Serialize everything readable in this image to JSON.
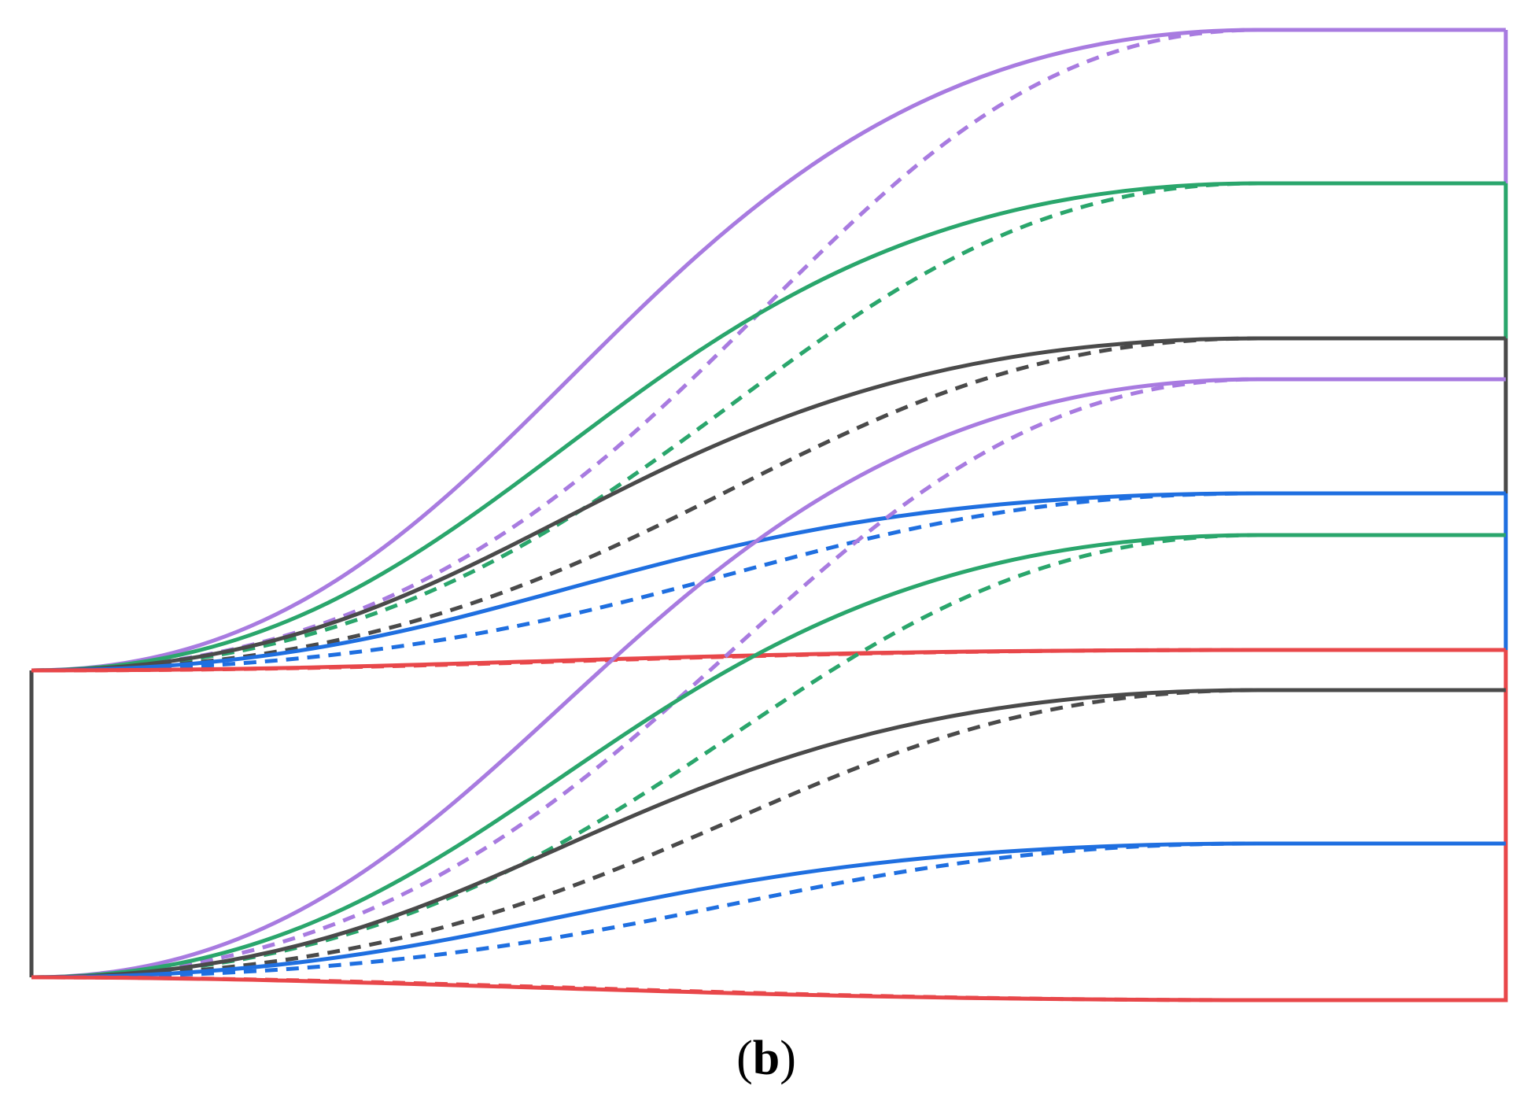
{
  "figure": {
    "caption_open": "(",
    "caption_letter": "b",
    "caption_close": ")"
  },
  "colors": {
    "black": "#4a4a4a",
    "red": "#e8474a",
    "blue": "#1f6fe0",
    "green": "#2aa66c",
    "purple": "#a87be0"
  },
  "frames": [
    {
      "name": "left-frame",
      "color": "black",
      "dash": false
    },
    {
      "name": "red-frame",
      "color": "red",
      "dash": false
    },
    {
      "name": "blue-frame-segment",
      "color": "blue",
      "dash": false
    },
    {
      "name": "black-frame-segment",
      "color": "black",
      "dash": false
    },
    {
      "name": "green-frame-segment",
      "color": "green",
      "dash": false
    },
    {
      "name": "purple-frame-segment",
      "color": "purple",
      "dash": false
    }
  ],
  "curves": [
    {
      "name": "top-purple-solid",
      "color": "purple",
      "dash": false
    },
    {
      "name": "top-purple-dashed",
      "color": "purple",
      "dash": true
    },
    {
      "name": "top-green-solid",
      "color": "green",
      "dash": false
    },
    {
      "name": "top-green-dashed",
      "color": "green",
      "dash": true
    },
    {
      "name": "top-black-solid",
      "color": "black",
      "dash": false
    },
    {
      "name": "top-black-dashed",
      "color": "black",
      "dash": true
    },
    {
      "name": "top-blue-solid",
      "color": "blue",
      "dash": false
    },
    {
      "name": "top-blue-dashed",
      "color": "blue",
      "dash": true
    },
    {
      "name": "top-red-solid",
      "color": "red",
      "dash": false
    },
    {
      "name": "top-red-dashed",
      "color": "red",
      "dash": true
    },
    {
      "name": "bottom-purple-solid",
      "color": "purple",
      "dash": false
    },
    {
      "name": "bottom-purple-dashed",
      "color": "purple",
      "dash": true
    },
    {
      "name": "bottom-green-solid",
      "color": "green",
      "dash": false
    },
    {
      "name": "bottom-green-dashed",
      "color": "green",
      "dash": true
    },
    {
      "name": "bottom-black-solid",
      "color": "black",
      "dash": false
    },
    {
      "name": "bottom-black-dashed",
      "color": "black",
      "dash": true
    },
    {
      "name": "bottom-blue-solid",
      "color": "blue",
      "dash": false
    },
    {
      "name": "bottom-blue-dashed",
      "color": "blue",
      "dash": true
    },
    {
      "name": "bottom-red-solid",
      "color": "red",
      "dash": false
    },
    {
      "name": "bottom-red-dashed",
      "color": "red",
      "dash": true
    }
  ]
}
